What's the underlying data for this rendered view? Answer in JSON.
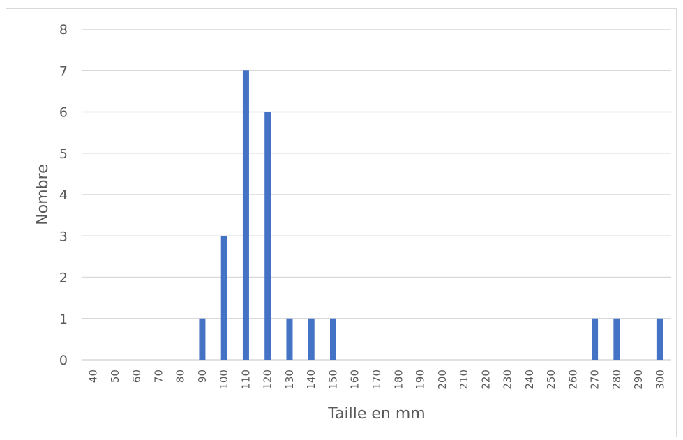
{
  "chart_data": {
    "type": "bar",
    "title": "",
    "xlabel": "Taille en mm",
    "ylabel": "Nombre",
    "ylim": [
      0,
      8
    ],
    "yticks": [
      "0",
      "1",
      "2",
      "3",
      "4",
      "5",
      "6",
      "7",
      "8"
    ],
    "grid": true,
    "legend": "none",
    "bar_color": "#4472c4",
    "categories": [
      "40",
      "50",
      "60",
      "70",
      "80",
      "90",
      "100",
      "110",
      "120",
      "130",
      "140",
      "150",
      "160",
      "170",
      "180",
      "190",
      "200",
      "210",
      "220",
      "230",
      "240",
      "250",
      "260",
      "270",
      "280",
      "290",
      "300"
    ],
    "values": [
      0,
      0,
      0,
      0,
      0,
      1,
      3,
      7,
      6,
      1,
      1,
      1,
      0,
      0,
      0,
      0,
      0,
      0,
      0,
      0,
      0,
      0,
      0,
      1,
      1,
      0,
      1
    ]
  }
}
